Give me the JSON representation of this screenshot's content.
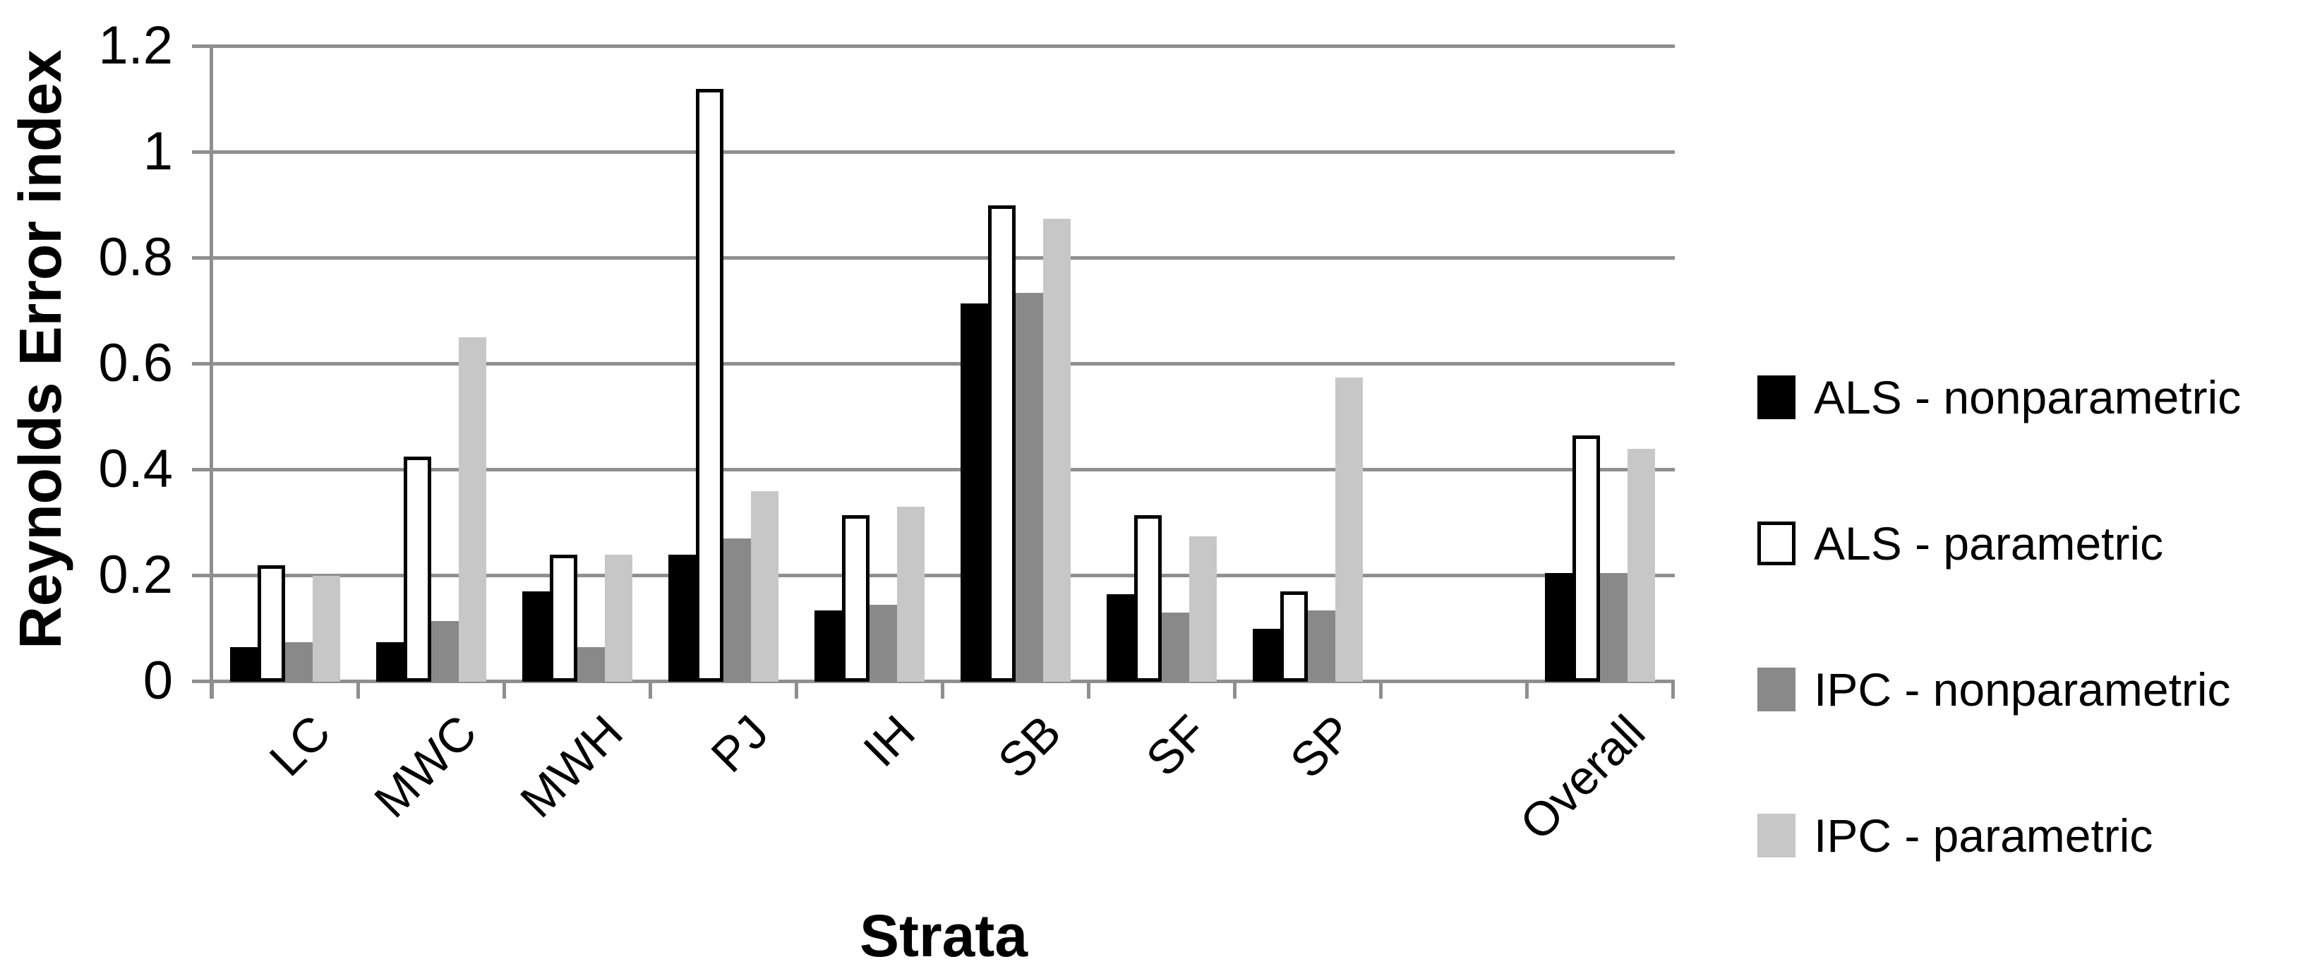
{
  "chart_data": {
    "type": "bar",
    "title": "",
    "xlabel": "Strata",
    "ylabel": "Reynolds Error index",
    "categories": [
      "LC",
      "MWC",
      "MWH",
      "PJ",
      "IH",
      "SB",
      "SF",
      "SP",
      "",
      "Overall"
    ],
    "series": [
      {
        "name": "ALS - nonparametric",
        "fill": "#000000",
        "border": "none",
        "values": [
          0.065,
          0.075,
          0.17,
          0.24,
          0.135,
          0.715,
          0.165,
          0.1,
          null,
          0.205
        ]
      },
      {
        "name": "ALS - parametric",
        "fill": "#ffffff",
        "border": "#000000",
        "values": [
          0.22,
          0.425,
          0.24,
          1.12,
          0.315,
          0.9,
          0.315,
          0.17,
          null,
          0.465
        ]
      },
      {
        "name": "IPC - nonparametric",
        "fill": "#898989",
        "border": "none",
        "values": [
          0.075,
          0.115,
          0.065,
          0.27,
          0.145,
          0.735,
          0.13,
          0.135,
          null,
          0.205
        ]
      },
      {
        "name": "IPC - parametric",
        "fill": "#c7c7c7",
        "border": "none",
        "values": [
          0.2,
          0.65,
          0.24,
          0.36,
          0.33,
          0.875,
          0.275,
          0.575,
          null,
          0.44
        ]
      }
    ],
    "y_ticks": [
      {
        "label": "1.2",
        "value": 1.2
      },
      {
        "label": "1",
        "value": 1
      },
      {
        "label": "0.8",
        "value": 0.8
      },
      {
        "label": "0.6",
        "value": 0.6
      },
      {
        "label": "0.4",
        "value": 0.4
      },
      {
        "label": "0.2",
        "value": 0.2
      },
      {
        "label": "0",
        "value": 0
      }
    ],
    "ylim": [
      0,
      1.2
    ],
    "grid": "horizontal",
    "legend_position": "right"
  },
  "colors": {
    "background": "#ffffff",
    "axis": "#8f8f8f",
    "grid": "#8f8f8f",
    "text": "#000000"
  }
}
